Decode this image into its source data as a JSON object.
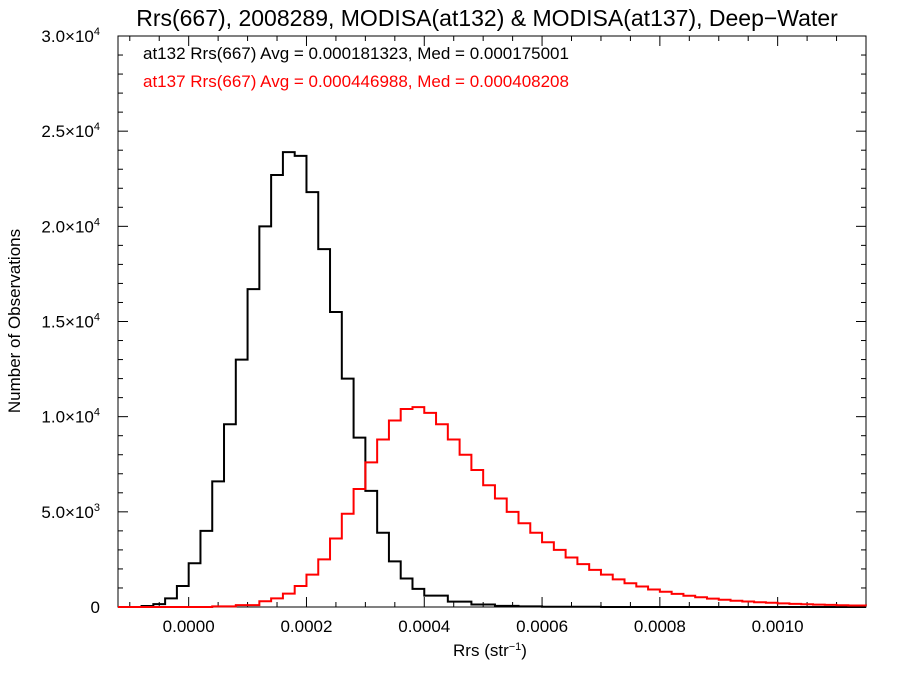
{
  "chart_data": {
    "type": "line",
    "title": "Rrs(667), 2008289, MODISA(at132) & MODISA(at137), Deep−Water",
    "xlabel": "Rrs (str",
    "xlabel_sup": "−1",
    "xlabel_close": ")",
    "ylabel": "Number of Observations",
    "xlim": [
      -0.00012,
      0.00115
    ],
    "ylim": [
      0,
      30000
    ],
    "xticks": [
      {
        "value": 0.0,
        "label": "0.0000"
      },
      {
        "value": 0.0002,
        "label": "0.0002"
      },
      {
        "value": 0.0004,
        "label": "0.0004"
      },
      {
        "value": 0.0006,
        "label": "0.0006"
      },
      {
        "value": 0.0008,
        "label": "0.0008"
      },
      {
        "value": 0.001,
        "label": "0.0010"
      }
    ],
    "yticks": [
      {
        "value": 0,
        "mant": "0",
        "exp": ""
      },
      {
        "value": 5000,
        "mant": "5.0×10",
        "exp": "3"
      },
      {
        "value": 10000,
        "mant": "1.0×10",
        "exp": "4"
      },
      {
        "value": 15000,
        "mant": "1.5×10",
        "exp": "4"
      },
      {
        "value": 20000,
        "mant": "2.0×10",
        "exp": "4"
      },
      {
        "value": 25000,
        "mant": "2.5×10",
        "exp": "4"
      },
      {
        "value": 30000,
        "mant": "3.0×10",
        "exp": "4"
      }
    ],
    "annotations": [
      {
        "text": "at132 Rrs(667) Avg = 0.000181323, Med = 0.000175001",
        "color": "#000000"
      },
      {
        "text": "at137 Rrs(667) Avg = 0.000446988, Med = 0.000408208",
        "color": "#ff0000"
      }
    ],
    "series": [
      {
        "color": "#000000",
        "points": [
          [
            -0.00012,
            0
          ],
          [
            -0.0001,
            0
          ],
          [
            -8e-05,
            50
          ],
          [
            -6e-05,
            150
          ],
          [
            -4e-05,
            450
          ],
          [
            -2e-05,
            1100
          ],
          [
            0.0,
            2300
          ],
          [
            2e-05,
            4000
          ],
          [
            4e-05,
            6600
          ],
          [
            6e-05,
            9600
          ],
          [
            8e-05,
            13000
          ],
          [
            0.0001,
            16700
          ],
          [
            0.00012,
            20000
          ],
          [
            0.00014,
            22700
          ],
          [
            0.00016,
            23900
          ],
          [
            0.00018,
            23700
          ],
          [
            0.0002,
            21800
          ],
          [
            0.00022,
            18800
          ],
          [
            0.00024,
            15500
          ],
          [
            0.00026,
            12000
          ],
          [
            0.00028,
            8900
          ],
          [
            0.0003,
            6100
          ],
          [
            0.00032,
            3900
          ],
          [
            0.00034,
            2400
          ],
          [
            0.00036,
            1500
          ],
          [
            0.00038,
            950
          ],
          [
            0.0004,
            600
          ],
          [
            0.00044,
            280
          ],
          [
            0.00048,
            130
          ],
          [
            0.00052,
            60
          ],
          [
            0.00056,
            30
          ],
          [
            0.0006,
            10
          ],
          [
            0.0007,
            0
          ],
          [
            0.00115,
            0
          ]
        ]
      },
      {
        "color": "#ff0000",
        "points": [
          [
            -0.00012,
            0
          ],
          [
            0.0,
            0
          ],
          [
            4e-05,
            30
          ],
          [
            8e-05,
            100
          ],
          [
            0.00012,
            300
          ],
          [
            0.00014,
            450
          ],
          [
            0.00016,
            700
          ],
          [
            0.00018,
            1100
          ],
          [
            0.0002,
            1700
          ],
          [
            0.00022,
            2500
          ],
          [
            0.00024,
            3600
          ],
          [
            0.00026,
            4900
          ],
          [
            0.00028,
            6200
          ],
          [
            0.0003,
            7600
          ],
          [
            0.00032,
            8800
          ],
          [
            0.00034,
            9800
          ],
          [
            0.00036,
            10400
          ],
          [
            0.00038,
            10500
          ],
          [
            0.0004,
            10200
          ],
          [
            0.00042,
            9600
          ],
          [
            0.00044,
            8800
          ],
          [
            0.00046,
            8000
          ],
          [
            0.00048,
            7200
          ],
          [
            0.0005,
            6400
          ],
          [
            0.00052,
            5700
          ],
          [
            0.00054,
            5000
          ],
          [
            0.00056,
            4400
          ],
          [
            0.00058,
            3900
          ],
          [
            0.0006,
            3400
          ],
          [
            0.00062,
            3000
          ],
          [
            0.00064,
            2600
          ],
          [
            0.00066,
            2250
          ],
          [
            0.00068,
            1950
          ],
          [
            0.0007,
            1700
          ],
          [
            0.00072,
            1450
          ],
          [
            0.00074,
            1250
          ],
          [
            0.00076,
            1080
          ],
          [
            0.00078,
            920
          ],
          [
            0.0008,
            800
          ],
          [
            0.00082,
            690
          ],
          [
            0.00084,
            590
          ],
          [
            0.00086,
            510
          ],
          [
            0.00088,
            440
          ],
          [
            0.0009,
            380
          ],
          [
            0.00092,
            330
          ],
          [
            0.00094,
            290
          ],
          [
            0.00096,
            250
          ],
          [
            0.00098,
            220
          ],
          [
            0.001,
            190
          ],
          [
            0.00102,
            165
          ],
          [
            0.00104,
            145
          ],
          [
            0.00106,
            125
          ],
          [
            0.00108,
            110
          ],
          [
            0.0011,
            95
          ],
          [
            0.00112,
            80
          ],
          [
            0.00115,
            70
          ]
        ]
      }
    ]
  }
}
